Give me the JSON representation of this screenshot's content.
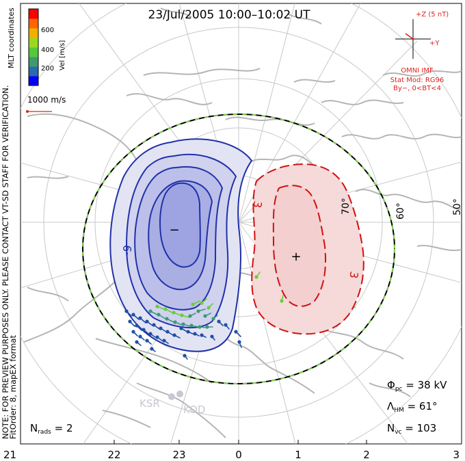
{
  "title": "23/Jul/2005  10:00–10:02  UT",
  "colorbar": {
    "label": "Vel [m/s]",
    "ticks": [
      "600",
      "400",
      "200"
    ],
    "colors": [
      "#0000ff",
      "#2a6ab0",
      "#3f9a6f",
      "#55c83a",
      "#9ad820",
      "#f0b000",
      "#ff6600",
      "#ff0000"
    ]
  },
  "coords_label": "MLT coordinates",
  "ref_vector_label": "1000 m/s",
  "imf": {
    "z_label": "+Z (5 nT)",
    "y_label": "+Y",
    "source": "OMNI IMF",
    "stat_mod": "Stat Mod: RG96",
    "condition": "By−, 0<BT<4"
  },
  "note_line1": "NOTE: FOR PREVIEW PURPOSES ONLY. PLEASE CONTACT VT-SD STAFF FOR VERIFICATION.",
  "note_line2": "FitOrder: 8, mapEX format",
  "lat_labels": [
    "60°",
    "50°",
    "70°"
  ],
  "contour_labels": [
    "-9",
    "3",
    "3"
  ],
  "cell_signs": {
    "neg": "−",
    "pos": "+"
  },
  "stations": [
    "KSR",
    "KOD"
  ],
  "stats": {
    "phi_symbol": "Φ",
    "phi_sub": "pc",
    "phi_value": " = 38 kV",
    "lambda_symbol": "Λ",
    "lambda_sub": "HM",
    "lambda_value": " = 61°",
    "nvc_symbol": "N",
    "nvc_sub": "vc",
    "nvc_value": " = 103",
    "nrads_symbol": "N",
    "nrads_sub": "rads",
    "nrads_value": " = 2"
  },
  "mlt_labels": [
    "21",
    "22",
    "23",
    "0",
    "1",
    "2",
    "3"
  ]
}
